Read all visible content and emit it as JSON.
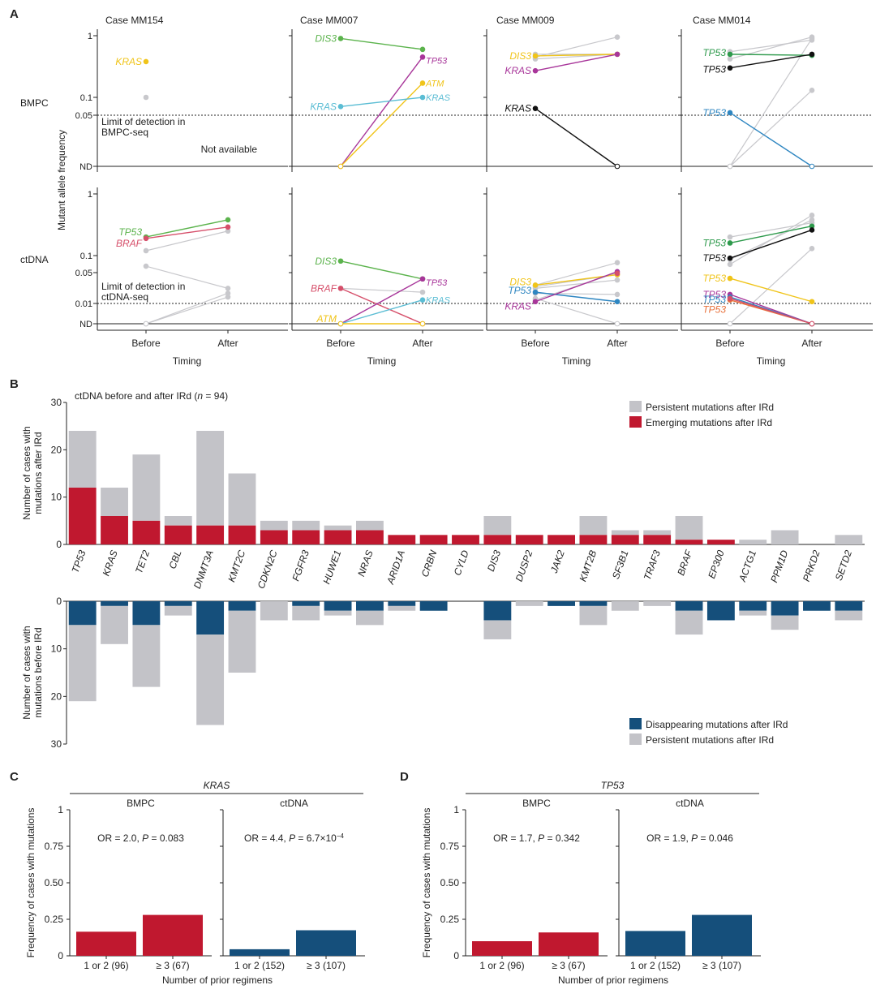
{
  "panel_letters": [
    "A",
    "B",
    "C",
    "D"
  ],
  "colors": {
    "red": "#c0182f",
    "blue": "#154f7b",
    "gray": "#c3c3c8",
    "ltgray": "#c8c8cc",
    "yellow": "#f0c419",
    "green": "#5bb34c",
    "dkgreen": "#2e9a4c",
    "magenta": "#a8369a",
    "cyan": "#5bbdd4",
    "blue2": "#2e86c1",
    "pinkred": "#d64f6a",
    "orange": "#e8703a",
    "black": "#111111"
  },
  "panelA": {
    "row_labels": [
      "BMPC",
      "ctDNA"
    ],
    "y_axis_label": "Mutant allele frequency",
    "x_label": "Timing",
    "x_ticks": [
      "Before",
      "After"
    ],
    "case_titles": [
      "Case MM154",
      "Case MM007",
      "Case MM009",
      "Case MM014"
    ],
    "bmpc_ticks": [
      "1",
      "0.1",
      "0.05",
      "ND"
    ],
    "ctdna_ticks": [
      "1",
      "0.1",
      "0.05",
      "0.01",
      "ND"
    ],
    "bmpc_lod_text": [
      "Limit of detection in",
      "BMPC-seq"
    ],
    "ctdna_lod_text": [
      "Limit of detection in",
      "ctDNA-seq"
    ],
    "not_available": "Not available"
  },
  "chart_data": [
    {
      "type": "line",
      "panel": "A",
      "title": "Case MM154 BMPC",
      "x": [
        "Before",
        "After"
      ],
      "series": [
        {
          "name": "KRAS",
          "color": "yellow",
          "values": [
            0.38,
            null
          ],
          "label": true
        },
        {
          "name": "",
          "color": "ltgray",
          "values": [
            0.1,
            null
          ]
        }
      ]
    },
    {
      "type": "line",
      "panel": "A",
      "title": "Case MM007 BMPC",
      "x": [
        "Before",
        "After"
      ],
      "series": [
        {
          "name": "DIS3",
          "color": "green",
          "values": [
            0.9,
            0.6
          ],
          "label": "before"
        },
        {
          "name": "TP53",
          "color": "magenta",
          "values": [
            "ND",
            0.45
          ],
          "label": "after"
        },
        {
          "name": "ATM",
          "color": "yellow",
          "values": [
            "ND",
            0.17
          ],
          "label": "after"
        },
        {
          "name": "KRAS",
          "color": "cyan",
          "values": [
            0.07,
            0.1
          ],
          "label": "both"
        }
      ]
    },
    {
      "type": "line",
      "panel": "A",
      "title": "Case MM009 BMPC",
      "x": [
        "Before",
        "After"
      ],
      "series": [
        {
          "name": "",
          "color": "ltgray",
          "values": [
            0.45,
            0.95
          ]
        },
        {
          "name": "",
          "color": "ltgray",
          "values": [
            0.42,
            0.5
          ]
        },
        {
          "name": "",
          "color": "ltgray",
          "values": [
            0.5,
            0.5
          ]
        },
        {
          "name": "DIS3",
          "color": "yellow",
          "values": [
            0.47,
            0.5
          ],
          "label": "before"
        },
        {
          "name": "KRAS",
          "color": "magenta",
          "values": [
            0.27,
            0.5
          ],
          "label": "before"
        },
        {
          "name": "KRAS",
          "color": "black",
          "values": [
            0.065,
            "ND"
          ],
          "label": "before"
        }
      ]
    },
    {
      "type": "line",
      "panel": "A",
      "title": "Case MM014 BMPC",
      "x": [
        "Before",
        "After"
      ],
      "series": [
        {
          "name": "",
          "color": "ltgray",
          "values": [
            0.42,
            0.95
          ]
        },
        {
          "name": "",
          "color": "ltgray",
          "values": [
            0.55,
            0.85
          ]
        },
        {
          "name": "",
          "color": "ltgray",
          "values": [
            "ND",
            0.9
          ]
        },
        {
          "name": "",
          "color": "ltgray",
          "values": [
            "ND",
            0.13
          ]
        },
        {
          "name": "TP53",
          "color": "dkgreen",
          "values": [
            0.5,
            0.48
          ],
          "label": "before"
        },
        {
          "name": "TP53",
          "color": "black",
          "values": [
            0.3,
            0.5
          ],
          "label": "before"
        },
        {
          "name": "TP53",
          "color": "blue2",
          "values": [
            0.055,
            "ND"
          ],
          "label": "before"
        }
      ]
    },
    {
      "type": "line",
      "panel": "A",
      "title": "Case MM154 ctDNA",
      "x": [
        "Before",
        "After"
      ],
      "series": [
        {
          "name": "",
          "color": "ltgray",
          "values": [
            0.12,
            0.25
          ]
        },
        {
          "name": "",
          "color": "ltgray",
          "values": [
            0.065,
            0.022
          ]
        },
        {
          "name": "",
          "color": "ltgray",
          "values": [
            "ND",
            0.017
          ]
        },
        {
          "name": "",
          "color": "ltgray",
          "values": [
            "ND",
            0.014
          ]
        },
        {
          "name": "TP53",
          "color": "green",
          "values": [
            0.2,
            0.38
          ],
          "label": "before"
        },
        {
          "name": "BRAF",
          "color": "pinkred",
          "values": [
            0.19,
            0.29
          ],
          "label": "before"
        }
      ]
    },
    {
      "type": "line",
      "panel": "A",
      "title": "Case MM007 ctDNA",
      "x": [
        "Before",
        "After"
      ],
      "series": [
        {
          "name": "",
          "color": "ltgray",
          "values": [
            0.022,
            0.018
          ]
        },
        {
          "name": "DIS3",
          "color": "green",
          "values": [
            0.08,
            0.036
          ],
          "label": "before"
        },
        {
          "name": "BRAF",
          "color": "pinkred",
          "values": [
            0.022,
            "ND"
          ],
          "label": "before"
        },
        {
          "name": "TP53",
          "color": "magenta",
          "values": [
            "ND",
            0.036
          ],
          "label": "after"
        },
        {
          "name": "KRAS",
          "color": "cyan",
          "values": [
            "ND",
            0.012
          ],
          "label": "after"
        },
        {
          "name": "ATM",
          "color": "yellow",
          "values": [
            "ND",
            "ND"
          ],
          "label": "before"
        }
      ]
    },
    {
      "type": "line",
      "panel": "A",
      "title": "Case MM009 ctDNA",
      "x": [
        "Before",
        "After"
      ],
      "series": [
        {
          "name": "",
          "color": "ltgray",
          "values": [
            0.026,
            0.075
          ]
        },
        {
          "name": "",
          "color": "ltgray",
          "values": [
            0.024,
            0.045
          ]
        },
        {
          "name": "",
          "color": "ltgray",
          "values": [
            0.022,
            0.034
          ]
        },
        {
          "name": "",
          "color": "ltgray",
          "values": [
            0.017,
            0.016
          ]
        },
        {
          "name": "",
          "color": "ltgray",
          "values": [
            0.013,
            "ND"
          ]
        },
        {
          "name": "",
          "color": "ltgray",
          "values": [
            0.012,
            0.05
          ]
        },
        {
          "name": "DIS3",
          "color": "yellow",
          "values": [
            0.026,
            0.045
          ],
          "label": "before"
        },
        {
          "name": "TP53",
          "color": "blue2",
          "values": [
            0.018,
            0.011
          ],
          "label": "before"
        },
        {
          "name": "KRAS",
          "color": "magenta",
          "values": [
            0.011,
            0.052
          ],
          "label": "before"
        },
        {
          "name": "",
          "color": "pinkred",
          "values": [
            null,
            0.048
          ]
        }
      ]
    },
    {
      "type": "line",
      "panel": "A",
      "title": "Case MM014 ctDNA",
      "x": [
        "Before",
        "After"
      ],
      "series": [
        {
          "name": "",
          "color": "ltgray",
          "values": [
            0.07,
            0.45
          ]
        },
        {
          "name": "",
          "color": "ltgray",
          "values": [
            0.085,
            0.38
          ]
        },
        {
          "name": "",
          "color": "ltgray",
          "values": [
            "ND",
            0.13
          ]
        },
        {
          "name": "",
          "color": "ltgray",
          "values": [
            0.2,
            0.34
          ]
        },
        {
          "name": "TP53",
          "color": "dkgreen",
          "values": [
            0.16,
            0.3
          ],
          "label": "before"
        },
        {
          "name": "TP53",
          "color": "black",
          "values": [
            0.09,
            0.26
          ],
          "label": "before"
        },
        {
          "name": "TP53",
          "color": "yellow",
          "values": [
            0.037,
            0.011
          ],
          "label": "before"
        },
        {
          "name": "TP53",
          "color": "magenta",
          "values": [
            0.016,
            "ND"
          ],
          "label": "before"
        },
        {
          "name": "TP53",
          "color": "blue2",
          "values": [
            0.014,
            "ND"
          ],
          "label": "before"
        },
        {
          "name": "TP53",
          "color": "orange",
          "values": [
            0.012,
            "ND"
          ],
          "label": "before"
        },
        {
          "name": "",
          "color": "pinkred",
          "values": [
            0.013,
            "ND"
          ]
        }
      ]
    },
    {
      "type": "bar",
      "panel": "B",
      "title": "ctDNA before and after IRd (n = 94)",
      "title_parts": [
        "ctDNA before and after IRd (",
        "n",
        " = 94)"
      ],
      "categories": [
        "TP53",
        "KRAS",
        "TET2",
        "CBL",
        "DNMT3A",
        "KMT2C",
        "CDKN2C",
        "FGFR3",
        "HUWE1",
        "NRAS",
        "ARID1A",
        "CRBN",
        "CYLD",
        "DIS3",
        "DUSP2",
        "JAK2",
        "KMT2B",
        "SF3B1",
        "TRAF3",
        "BRAF",
        "EP300",
        "ACTG1",
        "PPM1D",
        "PRKD2",
        "SETD2"
      ],
      "upper": {
        "ylabel": [
          "Number of cases with",
          "mutations after IRd"
        ],
        "ylim": [
          0,
          30
        ],
        "yticks": [
          0,
          10,
          20,
          30
        ],
        "series": [
          {
            "name": "Emerging mutations after IRd",
            "color": "red",
            "values": [
              12,
              6,
              5,
              4,
              4,
              4,
              3,
              3,
              3,
              3,
              2,
              2,
              2,
              2,
              2,
              2,
              2,
              2,
              2,
              1,
              1,
              0,
              0,
              0,
              0
            ]
          },
          {
            "name": "Persistent mutations after IRd",
            "color": "gray",
            "values": [
              12,
              6,
              14,
              2,
              20,
              11,
              2,
              2,
              1,
              2,
              0,
              0,
              0,
              4,
              0,
              0,
              4,
              1,
              1,
              5,
              0,
              1,
              3,
              0,
              2
            ]
          }
        ],
        "legend": [
          "Persistent mutations after IRd",
          "Emerging mutations after IRd"
        ]
      },
      "lower": {
        "ylabel": [
          "Number of cases with",
          "mutations before IRd"
        ],
        "ylim": [
          0,
          30
        ],
        "yticks": [
          0,
          10,
          20,
          30
        ],
        "series": [
          {
            "name": "Disappearing mutations after IRd",
            "color": "blue",
            "values": [
              5,
              1,
              5,
              1,
              7,
              2,
              0,
              1,
              2,
              2,
              1,
              2,
              0,
              4,
              0,
              1,
              1,
              0,
              0,
              2,
              4,
              2,
              3,
              2,
              2
            ]
          },
          {
            "name": "Persistent mutations after IRd",
            "color": "gray",
            "values": [
              16,
              8,
              13,
              2,
              19,
              13,
              4,
              3,
              1,
              3,
              1,
              0,
              0,
              4,
              1,
              0,
              4,
              2,
              1,
              5,
              0,
              1,
              3,
              0,
              2
            ]
          }
        ],
        "legend": [
          "Disappearing mutations after IRd",
          "Persistent mutations after IRd"
        ]
      }
    },
    {
      "type": "bar",
      "panel": "C",
      "group_title": "KRAS",
      "ylabel": "Frequency of cases with mutations",
      "xlabel": "Number of prior regimens",
      "ylim": [
        0,
        1
      ],
      "yticks": [
        "0",
        "0.25",
        "0.50",
        "0.75",
        "1"
      ],
      "subplots": [
        {
          "title": "BMPC",
          "stat_parts": [
            "OR = 2.0, ",
            "P",
            " = 0.083"
          ],
          "color": "red",
          "categories": [
            "1 or 2 (96)",
            "≥ 3 (67)"
          ],
          "values": [
            0.165,
            0.28
          ]
        },
        {
          "title": "ctDNA",
          "stat_parts": [
            "OR = 4.4, ",
            "P",
            " = 6.7×10",
            "−4"
          ],
          "color": "blue",
          "categories": [
            "1 or 2 (152)",
            "≥ 3 (107)"
          ],
          "values": [
            0.045,
            0.175
          ]
        }
      ]
    },
    {
      "type": "bar",
      "panel": "D",
      "group_title": "TP53",
      "ylabel": "Frequency of cases with mutations",
      "xlabel": "Number of prior regimens",
      "ylim": [
        0,
        1
      ],
      "yticks": [
        "0",
        "0.25",
        "0.50",
        "0.75",
        "1"
      ],
      "subplots": [
        {
          "title": "BMPC",
          "stat_parts": [
            "OR = 1.7, ",
            "P",
            " = 0.342"
          ],
          "color": "red",
          "categories": [
            "1 or 2 (96)",
            "≥ 3 (67)"
          ],
          "values": [
            0.1,
            0.16
          ]
        },
        {
          "title": "ctDNA",
          "stat_parts": [
            "OR = 1.9, ",
            "P",
            " = 0.046"
          ],
          "color": "blue",
          "categories": [
            "1 or 2 (152)",
            "≥ 3 (107)"
          ],
          "values": [
            0.17,
            0.28
          ]
        }
      ]
    }
  ]
}
